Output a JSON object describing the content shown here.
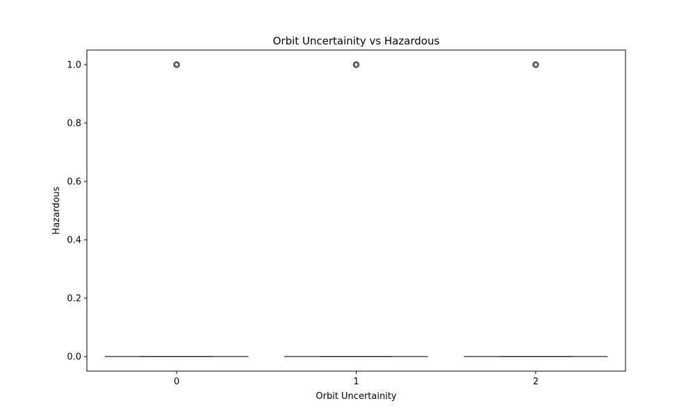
{
  "chart_data": {
    "type": "box",
    "title": "Orbit Uncertainity vs Hazardous",
    "xlabel": "Orbit Uncertainity",
    "ylabel": "Hazardous",
    "categories": [
      "0",
      "1",
      "2"
    ],
    "ylim": [
      -0.05,
      1.05
    ],
    "yticks": [
      0.0,
      0.2,
      0.4,
      0.6,
      0.8,
      1.0
    ],
    "ytick_labels": [
      "0.0",
      "0.2",
      "0.4",
      "0.6",
      "0.8",
      "1.0"
    ],
    "grid": false,
    "legend": "none",
    "boxes": [
      {
        "category": "0",
        "q1": 0,
        "median": 0,
        "q3": 0,
        "whisker_low": 0,
        "whisker_high": 0,
        "outliers": [
          1.0
        ]
      },
      {
        "category": "1",
        "q1": 0,
        "median": 0,
        "q3": 0,
        "whisker_low": 0,
        "whisker_high": 0,
        "outliers": [
          1.0
        ]
      },
      {
        "category": "2",
        "q1": 0,
        "median": 0,
        "q3": 0,
        "whisker_low": 0,
        "whisker_high": 0,
        "outliers": [
          1.0
        ]
      }
    ],
    "colors": {
      "box_line": "#3d3d3d",
      "axis": "#000000"
    }
  }
}
